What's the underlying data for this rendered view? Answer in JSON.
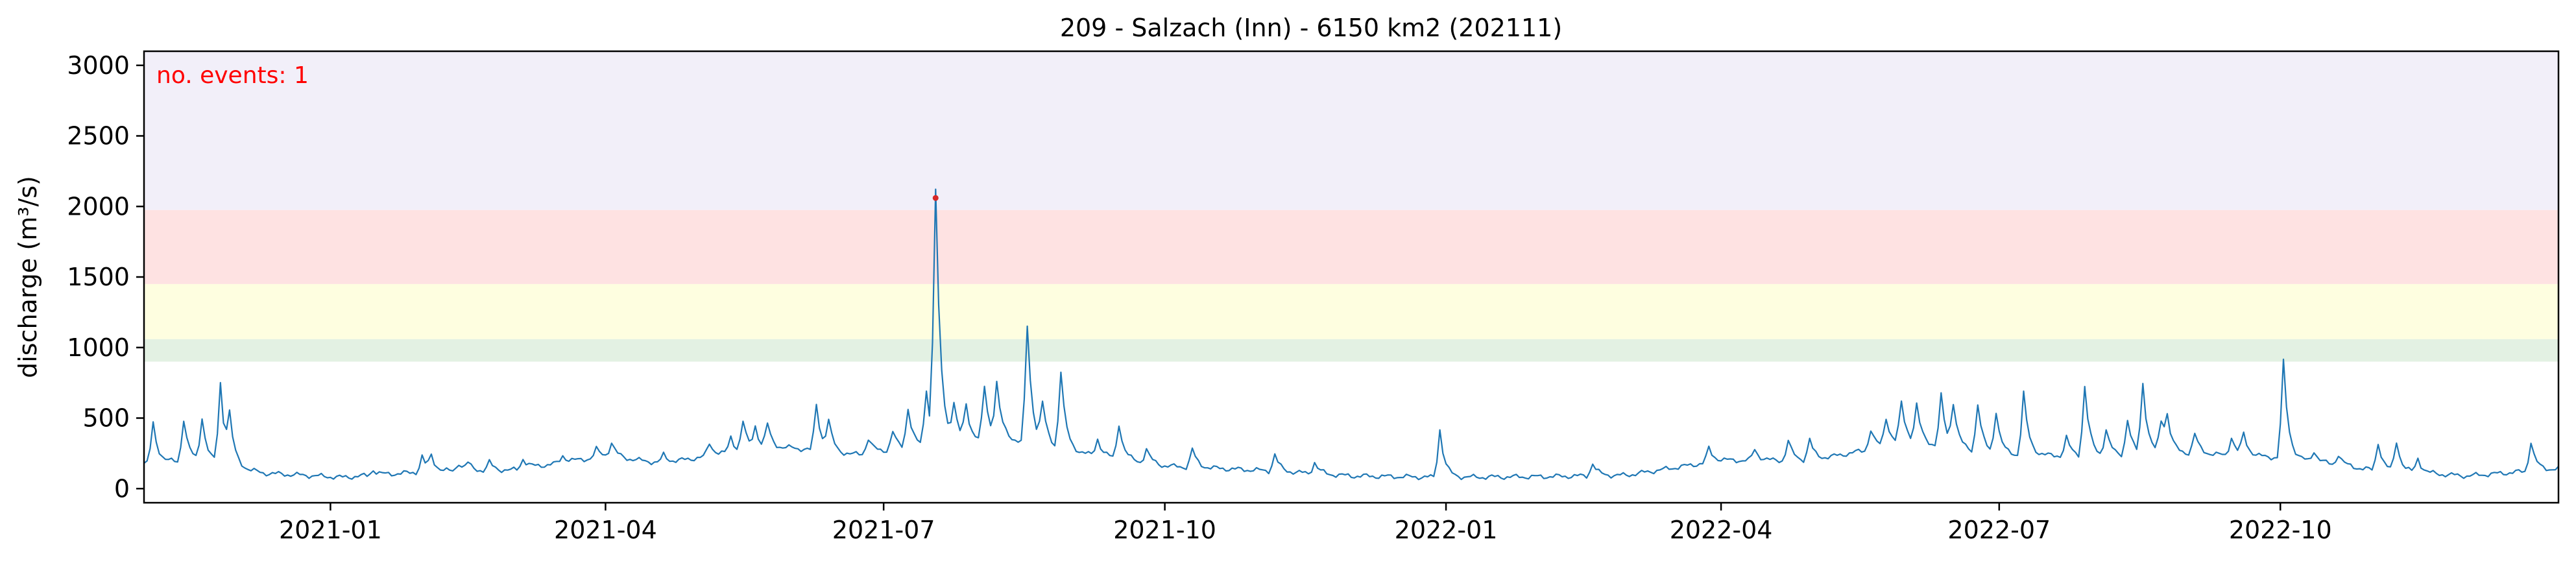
{
  "chart_data": {
    "type": "line",
    "title": "209 - Salzach (Inn) - 6150 km2 (202111)",
    "xlabel": "",
    "ylabel": "discharge (m³/s)",
    "annotation": "no. events: 1",
    "x_start": "2020-11-01",
    "x_end": "2022-12-31",
    "xlim": [
      "2020-11-01",
      "2022-12-31"
    ],
    "ylim": [
      -100,
      3100
    ],
    "yticks": [
      0,
      500,
      1000,
      1500,
      2000,
      2500,
      3000
    ],
    "xticks": [
      "2021-01",
      "2021-04",
      "2021-07",
      "2021-10",
      "2022-01",
      "2022-04",
      "2022-07",
      "2022-10"
    ],
    "grid": false,
    "bands": [
      {
        "from": 900,
        "to": 1060,
        "color": "#e3f1e3"
      },
      {
        "from": 1060,
        "to": 1450,
        "color": "#fefee0"
      },
      {
        "from": 1450,
        "to": 1975,
        "color": "#fee2e2"
      },
      {
        "from": 1975,
        "to": 3100,
        "color": "#f2eff9"
      }
    ],
    "series": [
      {
        "color": "#1f77b4",
        "baseline": [
          [
            "2020-11-01",
            180
          ],
          [
            "2020-11-20",
            200
          ],
          [
            "2020-12-10",
            110
          ],
          [
            "2021-01-05",
            80
          ],
          [
            "2021-02-01",
            120
          ],
          [
            "2021-03-01",
            130
          ],
          [
            "2021-04-01",
            230
          ],
          [
            "2021-04-20",
            180
          ],
          [
            "2021-05-10",
            250
          ],
          [
            "2021-06-01",
            290
          ],
          [
            "2021-06-20",
            240
          ],
          [
            "2021-07-18",
            310
          ],
          [
            "2021-08-10",
            350
          ],
          [
            "2021-09-01",
            260
          ],
          [
            "2021-10-01",
            160
          ],
          [
            "2021-11-01",
            130
          ],
          [
            "2021-12-01",
            90
          ],
          [
            "2022-01-01",
            80
          ],
          [
            "2022-02-01",
            85
          ],
          [
            "2022-03-01",
            95
          ],
          [
            "2022-04-01",
            200
          ],
          [
            "2022-05-01",
            200
          ],
          [
            "2022-06-01",
            330
          ],
          [
            "2022-07-01",
            240
          ],
          [
            "2022-08-01",
            230
          ],
          [
            "2022-09-01",
            250
          ],
          [
            "2022-10-01",
            220
          ],
          [
            "2022-11-01",
            130
          ],
          [
            "2022-12-01",
            90
          ],
          [
            "2022-12-31",
            140
          ]
        ],
        "peaks": [
          [
            "2020-11-04",
            280
          ],
          [
            "2020-11-14",
            300
          ],
          [
            "2020-11-20",
            300
          ],
          [
            "2020-11-26",
            570
          ],
          [
            "2020-11-29",
            300
          ],
          [
            "2021-01-15",
            40
          ],
          [
            "2021-01-31",
            110
          ],
          [
            "2021-02-03",
            100
          ],
          [
            "2021-02-12",
            60
          ],
          [
            "2021-02-15",
            50
          ],
          [
            "2021-02-22",
            60
          ],
          [
            "2021-03-05",
            70
          ],
          [
            "2021-03-18",
            50
          ],
          [
            "2021-03-29",
            60
          ],
          [
            "2021-04-03",
            100
          ],
          [
            "2021-04-20",
            60
          ],
          [
            "2021-05-05",
            90
          ],
          [
            "2021-05-12",
            110
          ],
          [
            "2021-05-16",
            210
          ],
          [
            "2021-05-20",
            160
          ],
          [
            "2021-05-24",
            170
          ],
          [
            "2021-06-09",
            330
          ],
          [
            "2021-06-13",
            200
          ],
          [
            "2021-06-26",
            100
          ],
          [
            "2021-07-04",
            130
          ],
          [
            "2021-07-09",
            280
          ],
          [
            "2021-07-15",
            400
          ],
          [
            "2021-07-18",
            1750
          ],
          [
            "2021-07-24",
            250
          ],
          [
            "2021-07-28",
            250
          ],
          [
            "2021-08-03",
            380
          ],
          [
            "2021-08-07",
            380
          ],
          [
            "2021-08-17",
            830
          ],
          [
            "2021-08-22",
            280
          ],
          [
            "2021-08-28",
            550
          ],
          [
            "2021-09-09",
            120
          ],
          [
            "2021-09-16",
            250
          ],
          [
            "2021-09-25",
            100
          ],
          [
            "2021-10-10",
            130
          ],
          [
            "2021-11-06",
            120
          ],
          [
            "2021-11-19",
            80
          ],
          [
            "2021-12-30",
            340
          ],
          [
            "2022-02-18",
            90
          ],
          [
            "2022-03-28",
            100
          ],
          [
            "2022-04-12",
            80
          ],
          [
            "2022-04-23",
            140
          ],
          [
            "2022-04-30",
            150
          ],
          [
            "2022-05-20",
            140
          ],
          [
            "2022-05-25",
            200
          ],
          [
            "2022-05-30",
            280
          ],
          [
            "2022-06-04",
            260
          ],
          [
            "2022-06-12",
            360
          ],
          [
            "2022-06-16",
            300
          ],
          [
            "2022-06-24",
            340
          ],
          [
            "2022-06-30",
            300
          ],
          [
            "2022-07-09",
            440
          ],
          [
            "2022-07-23",
            130
          ],
          [
            "2022-07-29",
            490
          ],
          [
            "2022-08-05",
            180
          ],
          [
            "2022-08-12",
            250
          ],
          [
            "2022-08-17",
            500
          ],
          [
            "2022-08-23",
            230
          ],
          [
            "2022-08-25",
            220
          ],
          [
            "2022-09-03",
            140
          ],
          [
            "2022-09-15",
            130
          ],
          [
            "2022-09-19",
            150
          ],
          [
            "2022-10-02",
            680
          ],
          [
            "2022-10-12",
            80
          ],
          [
            "2022-10-20",
            80
          ],
          [
            "2022-11-02",
            200
          ],
          [
            "2022-11-08",
            210
          ],
          [
            "2022-11-15",
            100
          ],
          [
            "2022-12-22",
            210
          ]
        ]
      }
    ],
    "events": [
      {
        "date": "2021-07-18",
        "value": 2060,
        "color": "#d62728"
      }
    ],
    "style": {
      "line_color": "#1f77b4",
      "annotation_color": "#ff0000",
      "axis_color": "#000000"
    }
  }
}
